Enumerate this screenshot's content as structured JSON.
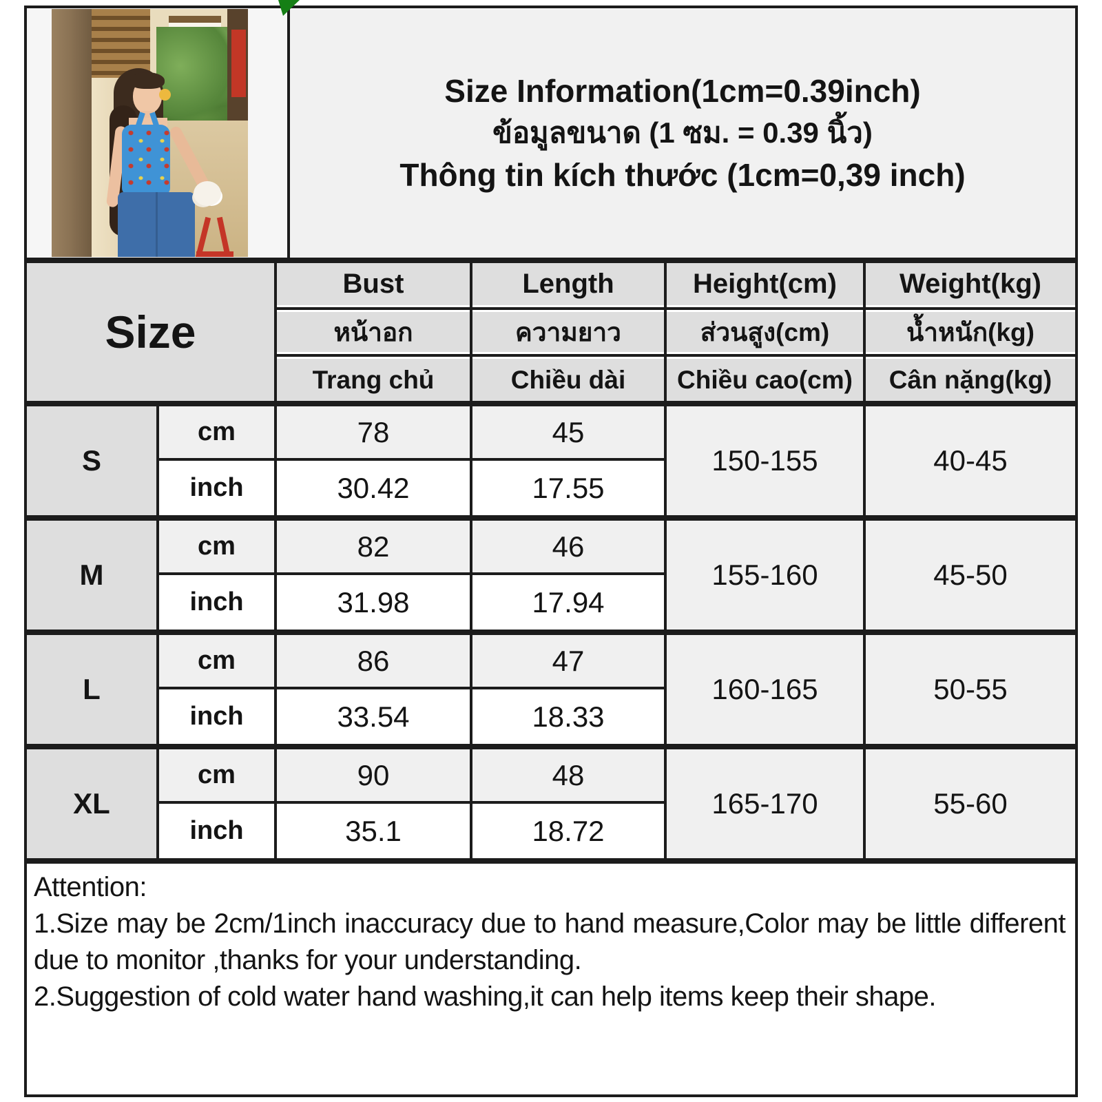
{
  "title": {
    "en": "Size Information(1cm=0.39inch)",
    "th": "ข้อมูลขนาด (1 ซม. = 0.39 นิ้ว)",
    "vi": "Thông tin kích thước (1cm=0,39 inch)"
  },
  "photo": {
    "alt": "Model wearing blue floral halter top and blue jeans holding a red bag in a wooden alley"
  },
  "table": {
    "size_label": "Size",
    "unit_cm": "cm",
    "unit_inch": "inch",
    "columns": [
      {
        "en": "Bust",
        "th": "หน้าอก",
        "vi": "Trang chủ"
      },
      {
        "en": "Length",
        "th": "ความยาว",
        "vi": "Chiều dài"
      },
      {
        "en": "Height(cm)",
        "th": "ส่วนสูง(cm)",
        "vi": "Chiều cao(cm)"
      },
      {
        "en": "Weight(kg)",
        "th": "น้ำหนัก(kg)",
        "vi": "Cân nặng(kg)"
      }
    ],
    "rows": [
      {
        "size": "S",
        "cm": [
          "78",
          "45"
        ],
        "inch": [
          "30.42",
          "17.55"
        ],
        "height": "150-155",
        "weight": "40-45"
      },
      {
        "size": "M",
        "cm": [
          "82",
          "46"
        ],
        "inch": [
          "31.98",
          "17.94"
        ],
        "height": "155-160",
        "weight": "45-50"
      },
      {
        "size": "L",
        "cm": [
          "86",
          "47"
        ],
        "inch": [
          "33.54",
          "18.33"
        ],
        "height": "160-165",
        "weight": "50-55"
      },
      {
        "size": "XL",
        "cm": [
          "90",
          "48"
        ],
        "inch": [
          "35.1",
          "18.72"
        ],
        "height": "165-170",
        "weight": "55-60"
      }
    ]
  },
  "attention": {
    "heading": "Attention:",
    "items": [
      "1.Size may be 2cm/1inch inaccuracy due to hand measure,Color may be little different due to monitor ,thanks for your understanding.",
      "2.Suggestion of cold water hand washing,it can help items keep their shape."
    ]
  },
  "colors": {
    "border": "#1c1c1c",
    "header_bg": "#dedede",
    "light_row_bg": "#f0f0f0",
    "title_bg": "#f1f1f1",
    "corner_marker_green": "#157f15",
    "sign_red": "#c23726",
    "top_blue": "#3f93d6"
  }
}
